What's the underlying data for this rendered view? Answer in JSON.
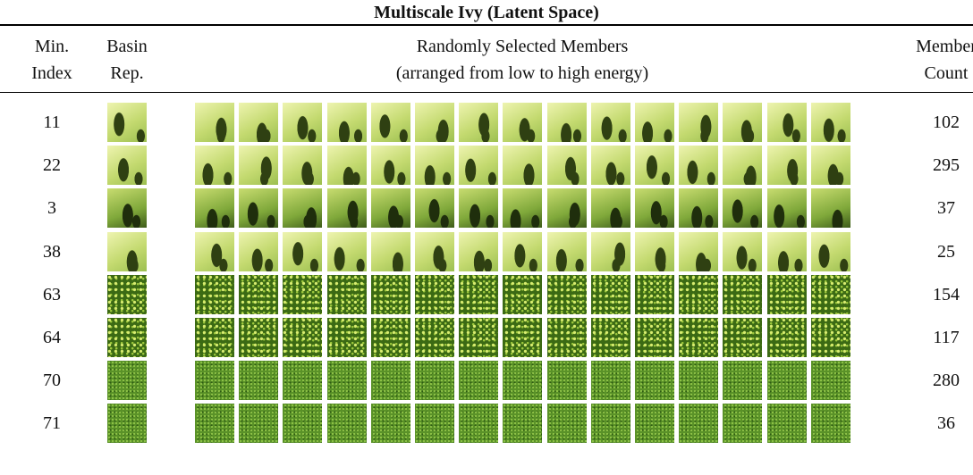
{
  "title": "Multiscale Ivy (Latent Space)",
  "headers": {
    "min_index": [
      "Min.",
      "Index"
    ],
    "basin_rep": [
      "Basin",
      "Rep."
    ],
    "members": [
      "Randomly Selected Members",
      "(arranged from low to high energy)"
    ],
    "member_count": [
      "Member",
      "Count"
    ]
  },
  "rows": [
    {
      "min_index": 11,
      "member_count": 102
    },
    {
      "min_index": 22,
      "member_count": 295
    },
    {
      "min_index": 3,
      "member_count": 37
    },
    {
      "min_index": 38,
      "member_count": 25
    },
    {
      "min_index": 63,
      "member_count": 154
    },
    {
      "min_index": 64,
      "member_count": 117
    },
    {
      "min_index": 70,
      "member_count": 280
    },
    {
      "min_index": 71,
      "member_count": 36
    }
  ]
}
